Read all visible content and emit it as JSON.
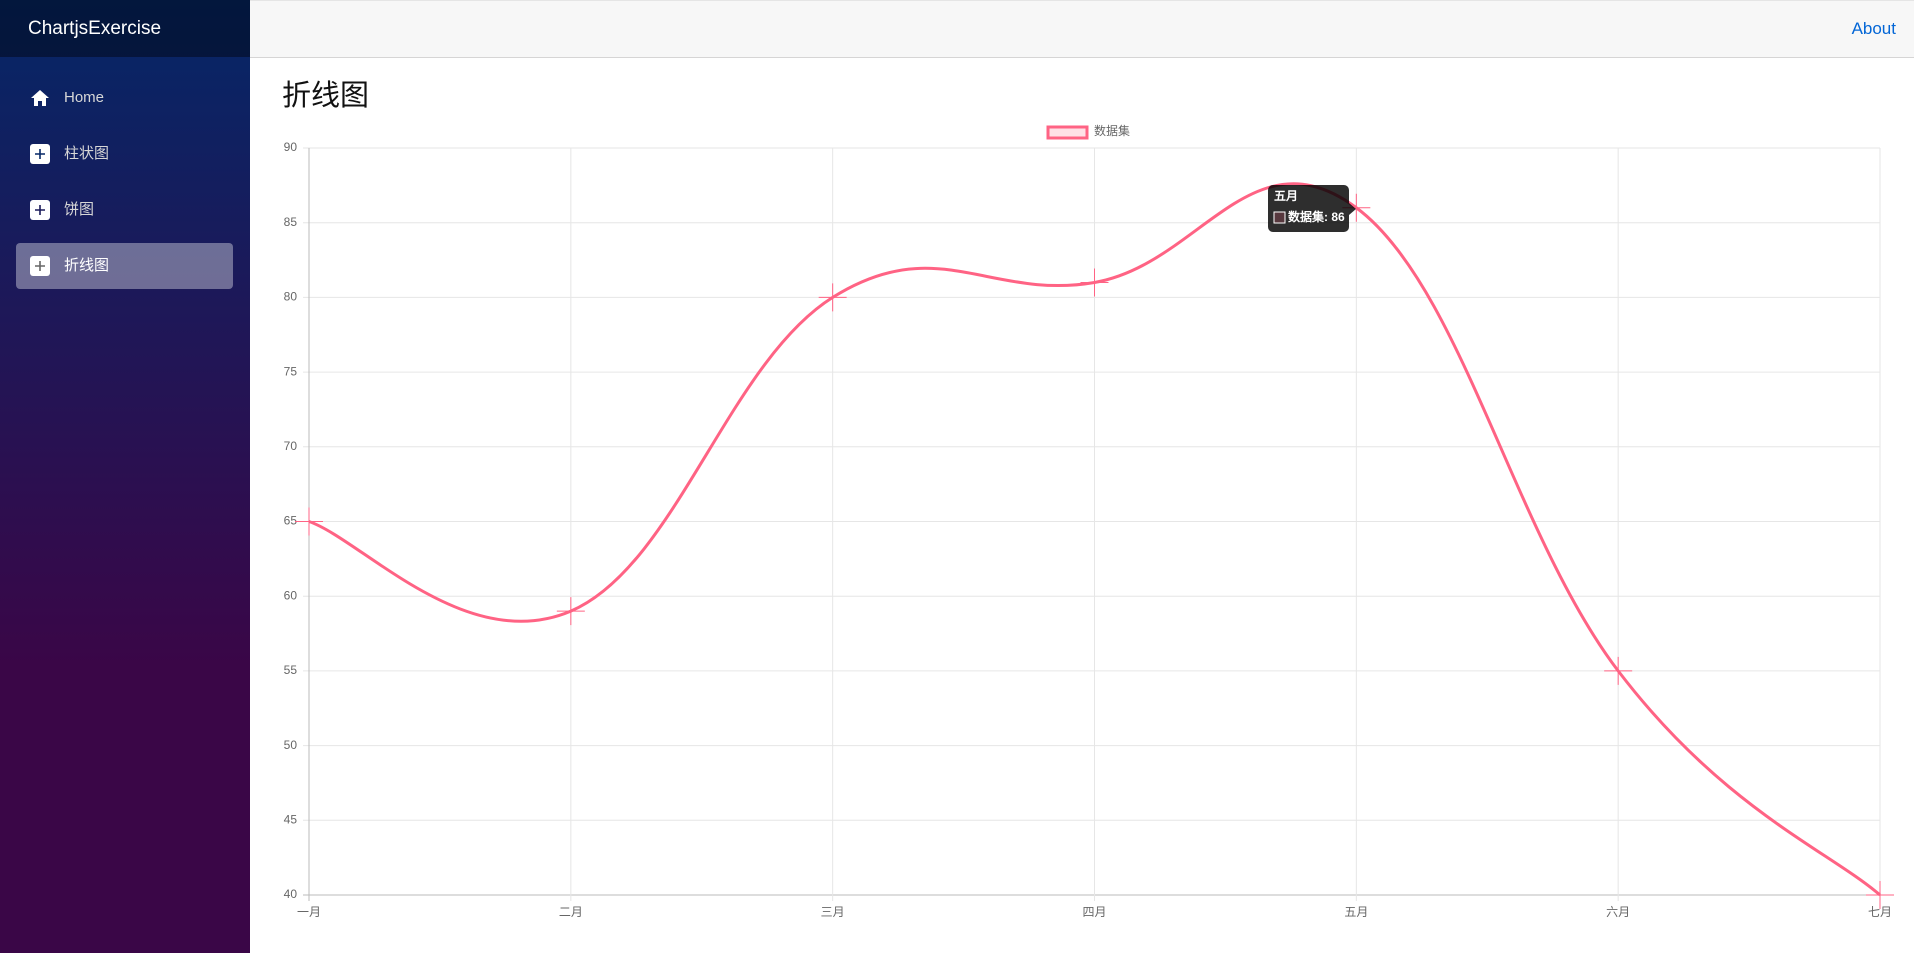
{
  "sidebar": {
    "brand": "ChartjsExercise",
    "nav": [
      "Home",
      "柱状图",
      "饼图",
      "折线图"
    ]
  },
  "topbar": {
    "link": "About"
  },
  "page": {
    "heading": "折线图"
  },
  "chart_data": {
    "type": "line",
    "categories": [
      "一月",
      "二月",
      "三月",
      "四月",
      "五月",
      "六月",
      "七月"
    ],
    "series": [
      {
        "name": "数据集",
        "color": "#ff6384",
        "values": [
          65,
          59,
          80,
          81,
          86,
          55,
          40
        ]
      }
    ],
    "ylim": [
      40,
      90
    ],
    "yticks": [
      40,
      45,
      50,
      55,
      60,
      65,
      70,
      75,
      80,
      85,
      90
    ],
    "grid": true,
    "legend": "top",
    "tooltip": {
      "title": "五月",
      "label": "数据集: 86"
    }
  }
}
